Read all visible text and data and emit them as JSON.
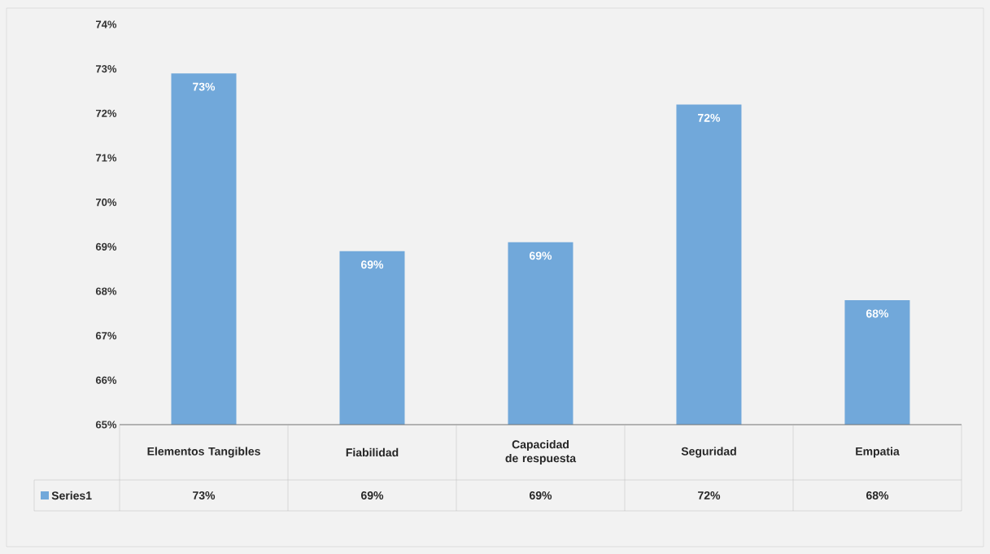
{
  "chart_data": {
    "type": "bar",
    "categories": [
      "Elementos Tangibles",
      "Fiabilidad",
      "Capacidad de respuesta",
      "Seguridad",
      "Empatia"
    ],
    "series": [
      {
        "name": "Series1",
        "color": "#71a8da",
        "values": [
          72.9,
          68.9,
          69.1,
          72.2,
          67.8
        ],
        "value_labels": [
          "73%",
          "69%",
          "69%",
          "72%",
          "68%"
        ]
      }
    ],
    "ylim": [
      65,
      74
    ],
    "yticks": [
      {
        "value": 65,
        "label": "65%"
      },
      {
        "value": 66,
        "label": "66%"
      },
      {
        "value": 67,
        "label": "67%"
      },
      {
        "value": 68,
        "label": "68%"
      },
      {
        "value": 69,
        "label": "69%"
      },
      {
        "value": 70,
        "label": "70%"
      },
      {
        "value": 71,
        "label": "71%"
      },
      {
        "value": 72,
        "label": "72%"
      },
      {
        "value": 73,
        "label": "73%"
      },
      {
        "value": 74,
        "label": "74%"
      }
    ],
    "legend": "bottom"
  }
}
